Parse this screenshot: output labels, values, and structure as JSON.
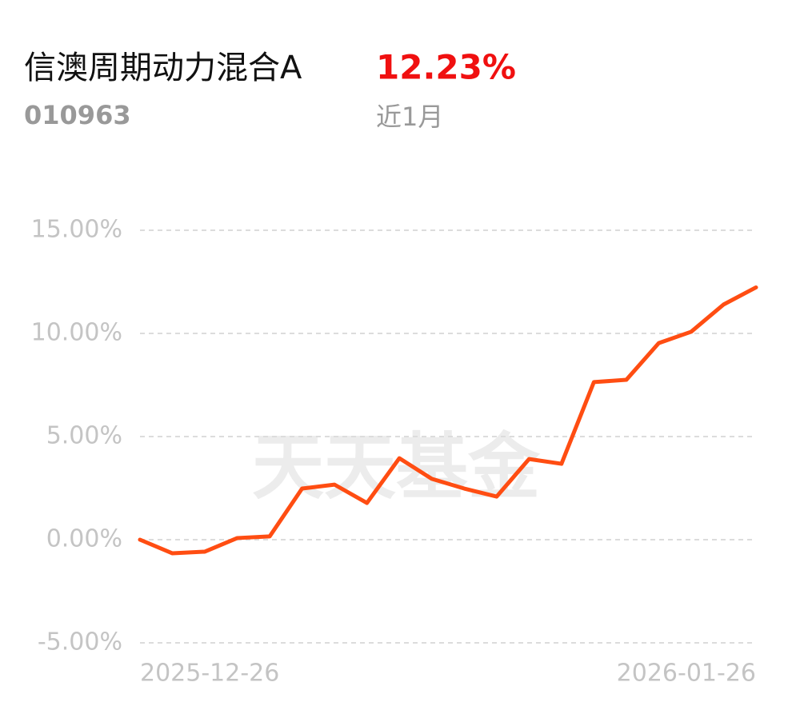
{
  "chart_data": {
    "type": "line",
    "title": "信澳周期动力混合A",
    "return": "12.23%",
    "code": "010963",
    "period": "近1月",
    "watermark": "天天基金",
    "categories": [
      "2025-12-26",
      null,
      null,
      null,
      null,
      null,
      null,
      null,
      null,
      null,
      null,
      null,
      null,
      null,
      null,
      null,
      null,
      null,
      null,
      "2026-01-26"
    ],
    "series": [
      {
        "color": "#ff4d12",
        "values": [
          0,
          -0.66,
          -0.58,
          0.08,
          0.16,
          2.48,
          2.67,
          1.78,
          3.95,
          2.95,
          2.48,
          2.09,
          3.91,
          3.68,
          7.64,
          7.75,
          9.53,
          10.08,
          11.4,
          12.23
        ]
      }
    ],
    "ylim": [
      -5,
      15
    ],
    "yticks": [
      {
        "value": -5,
        "label": "-5.00%"
      },
      {
        "value": 0,
        "label": "0.00%"
      },
      {
        "value": 5,
        "label": "5.00%"
      },
      {
        "value": 10,
        "label": "10.00%"
      },
      {
        "value": 15,
        "label": "15.00%"
      }
    ],
    "grid": true
  }
}
